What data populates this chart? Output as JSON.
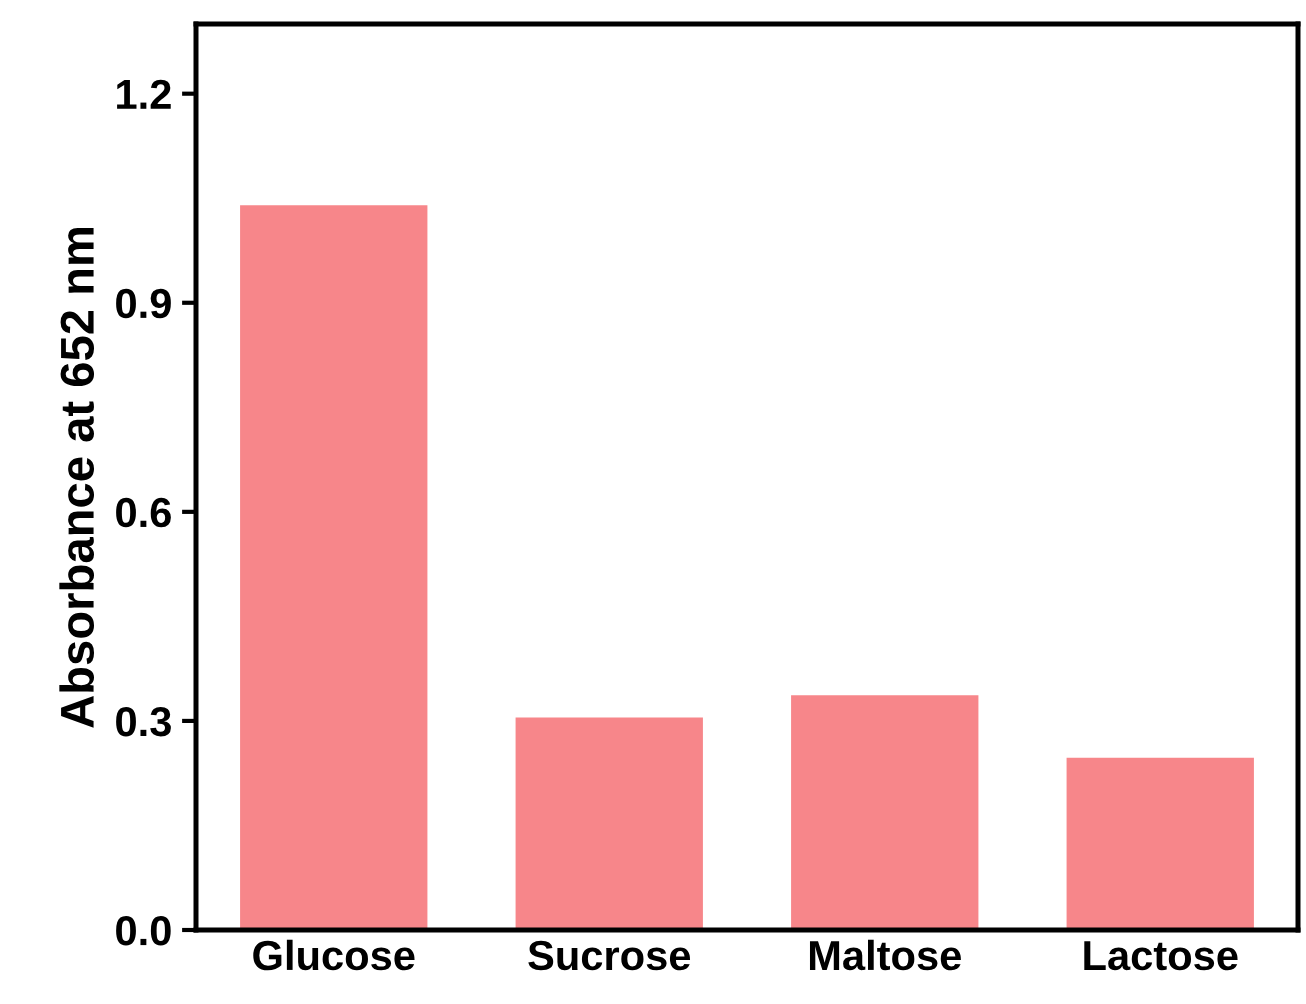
{
  "chart_data": {
    "type": "bar",
    "ylabel": "Absorbance at 652 nm",
    "categories": [
      "Glucose",
      "Sucrose",
      "Maltose",
      "Lactose"
    ],
    "values": [
      1.04,
      0.305,
      0.337,
      0.247
    ],
    "color": "#f7868a",
    "ylim": [
      0,
      1.3
    ],
    "yticks": [
      {
        "value": 0,
        "label": "0.0"
      },
      0.3,
      0.6,
      0.9,
      1.2
    ],
    "grid": false
  }
}
